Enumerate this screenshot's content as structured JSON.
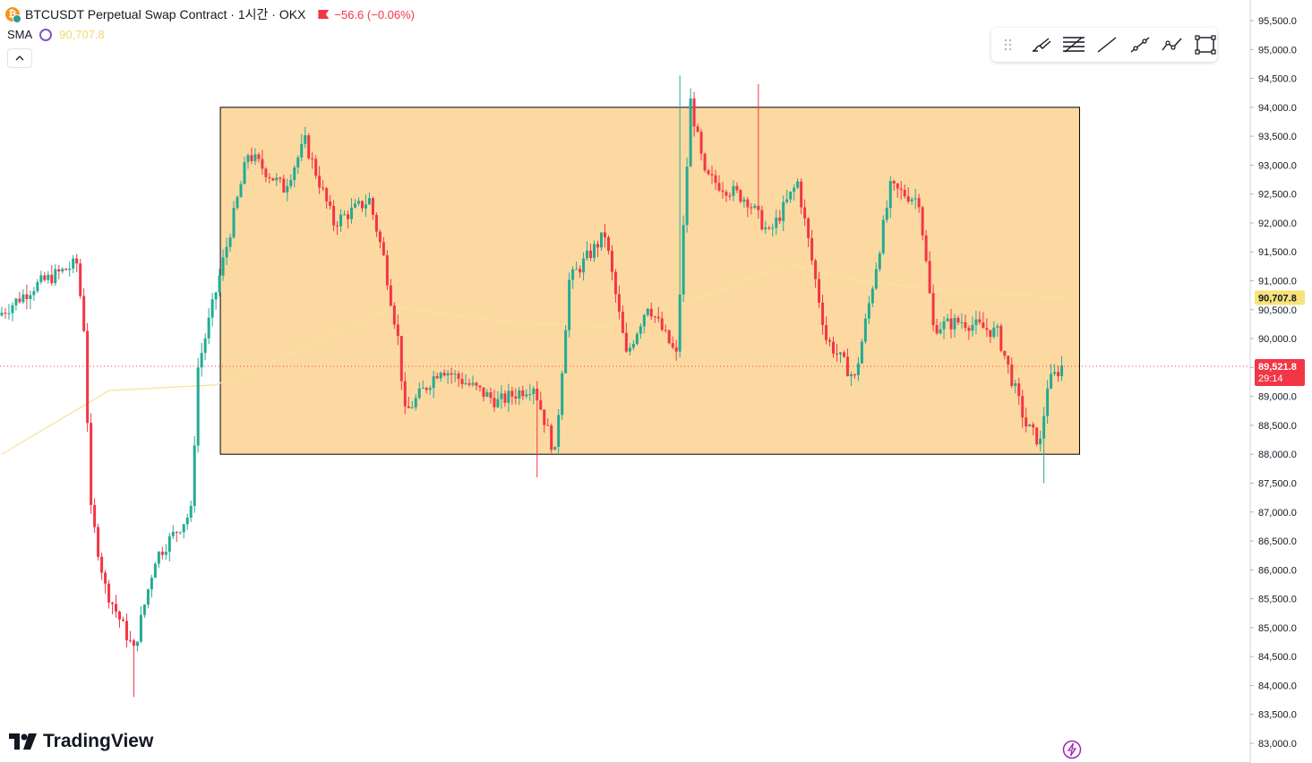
{
  "header": {
    "symbol_title": "BTCUSDT Perpetual Swap Contract · 1시간 · OKX",
    "change": "−56.6 (−0.06%)",
    "coin_glyph": "₿"
  },
  "indicator": {
    "name": "SMA",
    "value": "90,707.8"
  },
  "collapse_glyph": "^",
  "toolbar": {
    "tools": [
      "drag-grip-icon",
      "brush-icon",
      "fib-retracement-icon",
      "trend-line-icon",
      "ray-icon",
      "path-icon",
      "rectangle-icon"
    ]
  },
  "branding": {
    "logo_mark": "17",
    "logo_text": "TradingView"
  },
  "colors": {
    "up": "#22ab94",
    "down": "#f23645",
    "sma": "#f8e2a0",
    "rectangle_fill": "#fdd9a2",
    "rectangle_border": "#000000",
    "price_line": "#f23645",
    "sma_label_bg": "#f8e27a"
  },
  "chart_data": {
    "type": "candlestick",
    "title": "BTCUSDT Perpetual Swap Contract · 1시간 · OKX",
    "y_axis_ticks": [
      "95,500.0",
      "95,000.0",
      "94,500.0",
      "94,000.0",
      "93,500.0",
      "93,000.0",
      "92,500.0",
      "92,000.0",
      "91,500.0",
      "91,000.0",
      "90,500.0",
      "90,000.0",
      "89,500.0",
      "89,000.0",
      "88,500.0",
      "88,000.0",
      "87,500.0",
      "87,000.0",
      "86,500.0",
      "86,000.0",
      "85,500.0",
      "85,000.0",
      "84,500.0",
      "84,000.0",
      "83,500.0",
      "83,000.0"
    ],
    "y_ticks_values": [
      95500,
      95000,
      94500,
      94000,
      93500,
      93000,
      92500,
      92000,
      91500,
      91000,
      90500,
      90000,
      89500,
      89000,
      88500,
      88000,
      87500,
      87000,
      86500,
      86000,
      85500,
      85000,
      84500,
      84000,
      83500,
      83000
    ],
    "ylim": [
      82950,
      95850
    ],
    "bars_count": 298,
    "anchors": [
      [
        0,
        90400
      ],
      [
        10,
        90900
      ],
      [
        22,
        91300
      ],
      [
        24,
        90200
      ],
      [
        26,
        87000
      ],
      [
        30,
        85700
      ],
      [
        38,
        84600
      ],
      [
        44,
        86200
      ],
      [
        54,
        87000
      ],
      [
        56,
        89500
      ],
      [
        64,
        91600
      ],
      [
        70,
        93200
      ],
      [
        80,
        92600
      ],
      [
        86,
        93400
      ],
      [
        94,
        92000
      ],
      [
        104,
        92400
      ],
      [
        108,
        91400
      ],
      [
        112,
        90000
      ],
      [
        114,
        88700
      ],
      [
        124,
        89500
      ],
      [
        140,
        88900
      ],
      [
        150,
        89200
      ],
      [
        156,
        88000
      ],
      [
        160,
        91000
      ],
      [
        170,
        91800
      ],
      [
        176,
        89700
      ],
      [
        182,
        90600
      ],
      [
        190,
        89700
      ],
      [
        194,
        94100
      ],
      [
        198,
        92800
      ],
      [
        210,
        92400
      ],
      [
        216,
        91800
      ],
      [
        224,
        92700
      ],
      [
        232,
        90000
      ],
      [
        240,
        89300
      ],
      [
        244,
        90600
      ],
      [
        250,
        92600
      ],
      [
        258,
        92400
      ],
      [
        262,
        90200
      ],
      [
        270,
        90300
      ],
      [
        280,
        90100
      ],
      [
        288,
        88500
      ],
      [
        292,
        88200
      ],
      [
        294,
        89200
      ],
      [
        298,
        89522
      ]
    ],
    "sma": [
      [
        0,
        88000
      ],
      [
        30,
        89100
      ],
      [
        60,
        89200
      ],
      [
        80,
        89700
      ],
      [
        110,
        90550
      ],
      [
        140,
        90300
      ],
      [
        170,
        90200
      ],
      [
        200,
        90800
      ],
      [
        220,
        91300
      ],
      [
        240,
        91000
      ],
      [
        270,
        90800
      ],
      [
        298,
        90708
      ]
    ],
    "sma_last": 90707.8,
    "last_price": "89,521.8",
    "last_price_value": 89521.8,
    "countdown": "29:14",
    "sma_label": "90,707.8",
    "rectangle": {
      "from_bar": 63,
      "to_bar": 302,
      "top_price": 94000,
      "bottom_price": 88000
    },
    "notable_wicks": [
      {
        "bar": 37,
        "low": 83800
      },
      {
        "bar": 150,
        "low": 87600
      },
      {
        "bar": 190,
        "high": 94550
      },
      {
        "bar": 212,
        "high": 94400
      },
      {
        "bar": 292,
        "low": 87500
      }
    ]
  }
}
